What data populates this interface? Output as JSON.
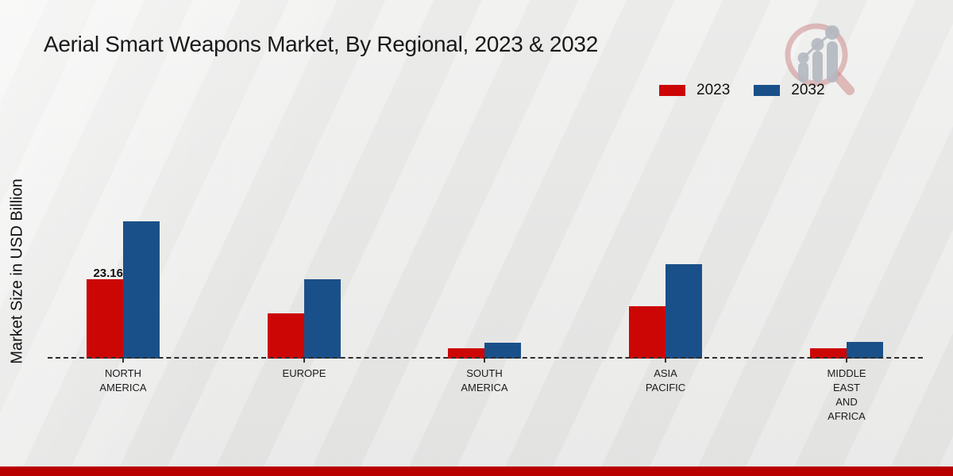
{
  "title": "Aerial Smart Weapons Market, By Regional, 2023 & 2032",
  "ylabel": "Market Size in USD Billion",
  "legend": {
    "items": [
      {
        "label": "2023",
        "color": "#cc0605"
      },
      {
        "label": "2032",
        "color": "#1a5089"
      }
    ]
  },
  "colors": {
    "bar_2023": "#cc0605",
    "bar_2032": "#1a5089",
    "footer_strip": "#b80000",
    "baseline_dash": "#2e2e2e",
    "background": "#ebebea",
    "text": "#1a1a1a"
  },
  "icons": {
    "logo": "magnifier-bar-chart-logo"
  },
  "chart_data": {
    "type": "bar",
    "title": "Aerial Smart Weapons Market, By Regional, 2023 & 2032",
    "xlabel": "",
    "ylabel": "Market Size in USD Billion",
    "grid": false,
    "legend_position": "top-right",
    "baseline_value": 0,
    "categories": [
      "NORTH AMERICA",
      "EUROPE",
      "SOUTH AMERICA",
      "ASIA PACIFIC",
      "MIDDLE EAST AND AFRICA"
    ],
    "category_label_lines": [
      [
        "NORTH",
        "AMERICA"
      ],
      [
        "EUROPE"
      ],
      [
        "SOUTH",
        "AMERICA"
      ],
      [
        "ASIA",
        "PACIFIC"
      ],
      [
        "MIDDLE",
        "EAST",
        "AND",
        "AFRICA"
      ]
    ],
    "series": [
      {
        "name": "2023",
        "color": "#cc0605",
        "values": [
          23.16,
          13.2,
          3.0,
          15.3,
          3.0
        ],
        "data_labels": [
          "23.16",
          "",
          "",
          "",
          ""
        ]
      },
      {
        "name": "2032",
        "color": "#1a5089",
        "values": [
          40.1,
          23.2,
          4.6,
          27.6,
          4.9
        ],
        "data_labels": [
          "",
          "",
          "",
          "",
          ""
        ]
      }
    ]
  }
}
